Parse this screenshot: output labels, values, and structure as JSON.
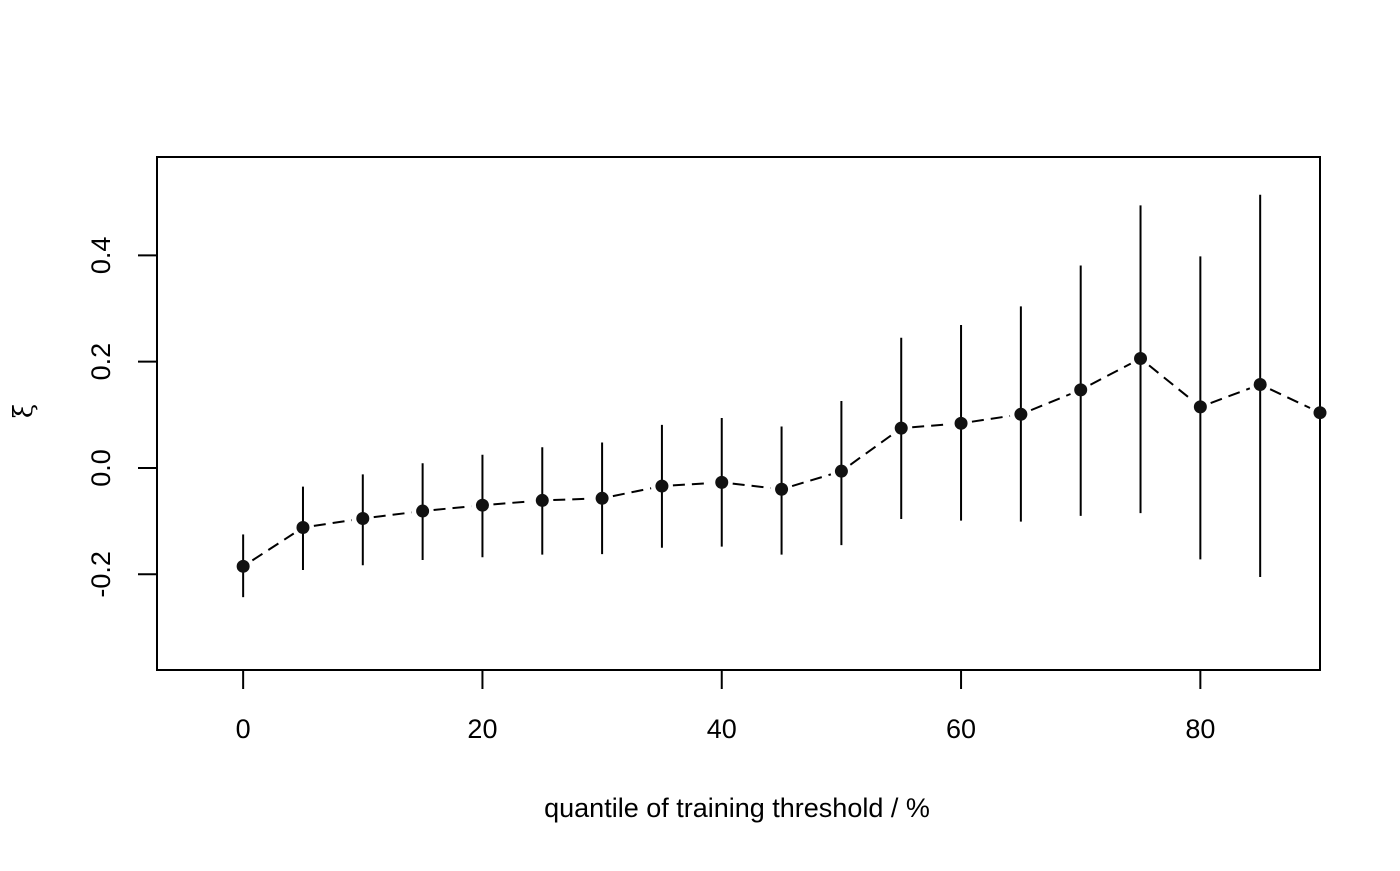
{
  "chart_data": {
    "type": "scatter",
    "subtype": "point-with-error-bars",
    "title": "",
    "xlabel": "quantile of training threshold / %",
    "ylabel": "ξ",
    "xlim": [
      -7.2,
      90
    ],
    "ylim": [
      -0.38,
      0.585
    ],
    "x_ticks": [
      0,
      20,
      40,
      60,
      80
    ],
    "x_tick_labels": [
      "0",
      "20",
      "40",
      "60",
      "80"
    ],
    "y_ticks": [
      -0.2,
      0.0,
      0.2,
      0.4
    ],
    "y_tick_labels": [
      "-0.2",
      "0.0",
      "0.2",
      "0.4"
    ],
    "grid": false,
    "legend": "none",
    "line_style": "dashed",
    "colors": {
      "points": "#111111",
      "lines": "#000000"
    },
    "series": [
      {
        "x": [
          0,
          5,
          10,
          15,
          20,
          25,
          30,
          35,
          40,
          45,
          50,
          55,
          60,
          65,
          70,
          75,
          80,
          85,
          90
        ],
        "y": [
          -0.185,
          -0.112,
          -0.095,
          -0.081,
          -0.07,
          -0.061,
          -0.057,
          -0.034,
          -0.027,
          -0.04,
          -0.006,
          0.075,
          0.084,
          0.101,
          0.147,
          0.206,
          0.115,
          0.157,
          0.104
        ],
        "lower": [
          -0.243,
          -0.192,
          -0.183,
          -0.173,
          -0.168,
          -0.163,
          -0.162,
          -0.15,
          -0.148,
          -0.163,
          -0.145,
          -0.096,
          -0.099,
          -0.101,
          -0.09,
          -0.085,
          -0.172,
          -0.205,
          -0.345
        ],
        "upper": [
          -0.125,
          -0.035,
          -0.012,
          0.009,
          0.025,
          0.039,
          0.048,
          0.081,
          0.094,
          0.078,
          0.126,
          0.245,
          0.269,
          0.304,
          0.381,
          0.494,
          0.398,
          0.514,
          0.55
        ]
      }
    ]
  }
}
